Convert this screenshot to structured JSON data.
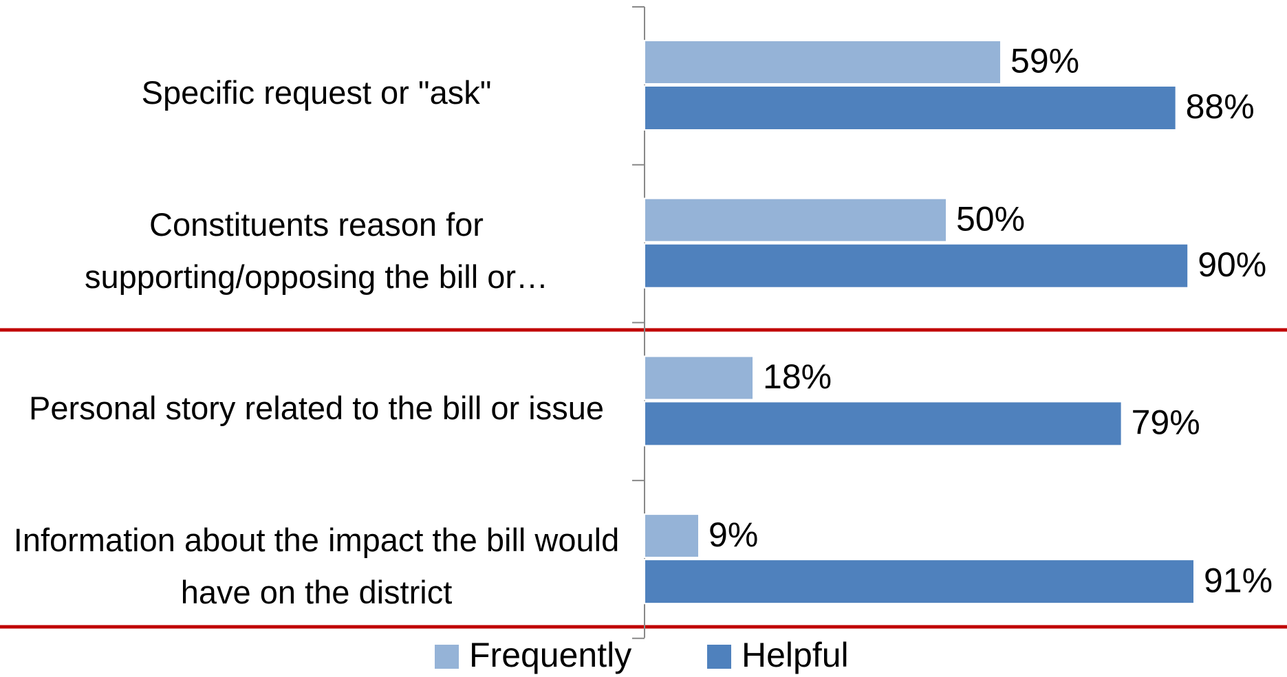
{
  "chart_data": {
    "type": "bar",
    "orientation": "horizontal",
    "categories": [
      "Specific request or \"ask\"",
      "Constituents reason for supporting/opposing the bill or…",
      "Personal story related to the bill or issue",
      "Information about the impact the bill would have on the district"
    ],
    "series": [
      {
        "name": "Frequently",
        "color": "#95b3d7",
        "values": [
          59,
          50,
          18,
          9
        ],
        "value_labels": [
          "59%",
          "50%",
          "18%",
          "9%"
        ]
      },
      {
        "name": "Helpful",
        "color": "#4f81bd",
        "values": [
          88,
          90,
          79,
          91
        ],
        "value_labels": [
          "88%",
          "90%",
          "79%",
          "91%"
        ]
      }
    ],
    "xlim": [
      0,
      100
    ],
    "legend": "bottom"
  }
}
